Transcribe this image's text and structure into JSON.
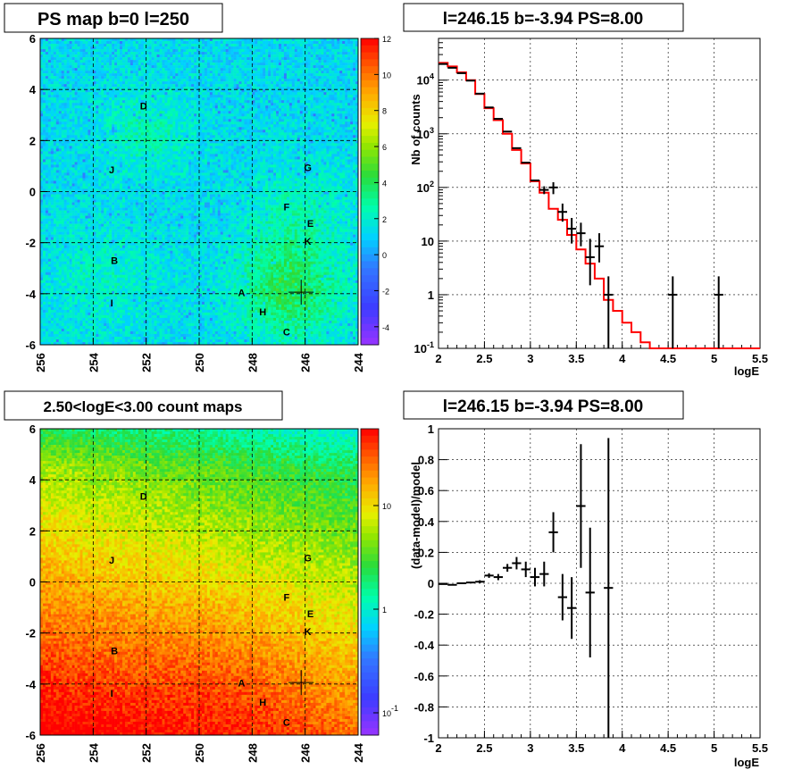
{
  "chart_data": [
    {
      "type": "heatmap",
      "title": "PS map b=0 l=250",
      "xlim": [
        256,
        244
      ],
      "ylim": [
        -6,
        6
      ],
      "x_ticks": [
        "256",
        "254",
        "252",
        "250",
        "248",
        "246",
        "244"
      ],
      "y_ticks": [
        "6",
        "4",
        "2",
        "0",
        "-2",
        "-4",
        "-6"
      ],
      "colorbar": {
        "min": -5,
        "max": 12,
        "ticks": [
          "12",
          "10",
          "8",
          "6",
          "4",
          "2",
          "0",
          "-2",
          "-4"
        ]
      },
      "sources": [
        {
          "label": "A",
          "l": 248.4,
          "b": -3.95
        },
        {
          "label": "B",
          "l": 253.2,
          "b": -2.7
        },
        {
          "label": "C",
          "l": 246.7,
          "b": -5.5
        },
        {
          "label": "D",
          "l": 252.1,
          "b": 3.35
        },
        {
          "label": "E",
          "l": 245.8,
          "b": -1.25
        },
        {
          "label": "F",
          "l": 246.7,
          "b": -0.6
        },
        {
          "label": "G",
          "l": 245.9,
          "b": 0.95
        },
        {
          "label": "H",
          "l": 247.6,
          "b": -4.7
        },
        {
          "label": "I",
          "l": 253.3,
          "b": -4.35
        },
        {
          "label": "J",
          "l": 253.3,
          "b": 0.85
        },
        {
          "label": "K",
          "l": 245.9,
          "b": -1.95
        }
      ],
      "marker": {
        "l": 246.15,
        "b": -3.94
      },
      "grid": true
    },
    {
      "type": "line",
      "title": "l=246.15 b=-3.94 PS=8.00",
      "xlabel": "logE",
      "ylabel": "Nb of counts",
      "xlim": [
        2,
        5.5
      ],
      "ylim": [
        0.1,
        60000
      ],
      "yscale": "log",
      "x_ticks": [
        "2",
        "2.5",
        "3",
        "3.5",
        "4",
        "4.5",
        "5",
        "5.5"
      ],
      "y_ticks": [
        "10^4",
        "10^3",
        "10^2",
        "10",
        "1",
        "10^-1"
      ],
      "model_step": {
        "name": "model",
        "color": "#ff0000",
        "bin_width": 0.1,
        "x": [
          2.05,
          2.15,
          2.25,
          2.35,
          2.45,
          2.55,
          2.65,
          2.75,
          2.85,
          2.95,
          3.05,
          3.15,
          3.25,
          3.35,
          3.45,
          3.55,
          3.65,
          3.75,
          3.85,
          3.95,
          4.05,
          4.15,
          4.25,
          4.35,
          4.45,
          4.55,
          4.65,
          4.75,
          4.85,
          4.95,
          5.05,
          5.15,
          5.25,
          5.35,
          5.45
        ],
        "y": [
          21000,
          18000,
          14000,
          10000,
          5500,
          3000,
          1800,
          1000,
          500,
          280,
          130,
          80,
          40,
          25,
          13,
          7,
          3.8,
          2,
          0.8,
          0.5,
          0.3,
          0.2,
          0.13,
          0.1,
          0.1,
          0.1,
          0.1,
          0.1,
          0.1,
          0.1,
          0.1,
          0.1,
          0.1,
          0.1,
          0.1
        ]
      },
      "data_points": {
        "name": "data",
        "color": "#000000",
        "x": [
          2.05,
          2.15,
          2.25,
          2.35,
          2.45,
          2.55,
          2.65,
          2.75,
          2.85,
          2.95,
          3.05,
          3.15,
          3.25,
          3.35,
          3.45,
          3.55,
          3.65,
          3.75,
          3.85,
          4.55,
          5.05
        ],
        "y": [
          20000,
          17000,
          13500,
          9800,
          5600,
          3100,
          1900,
          1100,
          540,
          290,
          135,
          90,
          100,
          35,
          17,
          14,
          5,
          8,
          1,
          1,
          1
        ],
        "err_low": [
          0,
          0,
          0,
          0,
          0,
          0,
          0,
          0,
          0,
          0,
          0,
          15,
          25,
          12,
          8,
          6,
          3.5,
          4,
          0.9,
          0.9,
          0.9
        ],
        "err_high": [
          0,
          0,
          0,
          0,
          0,
          0,
          0,
          0,
          0,
          0,
          0,
          15,
          25,
          15,
          10,
          8,
          6,
          6,
          1.2,
          1.2,
          1.2
        ]
      },
      "grid": true
    },
    {
      "type": "heatmap",
      "title": "2.50<logE<3.00 count maps",
      "xlim": [
        256,
        244
      ],
      "ylim": [
        -6,
        6
      ],
      "x_ticks": [
        "256",
        "254",
        "252",
        "250",
        "248",
        "246",
        "244"
      ],
      "y_ticks": [
        "6",
        "4",
        "2",
        "0",
        "-2",
        "-4",
        "-6"
      ],
      "colorbar": {
        "scale": "log",
        "ticks": [
          "10",
          "1",
          "10^-1"
        ]
      },
      "sources": [
        {
          "label": "A",
          "l": 248.4,
          "b": -3.95
        },
        {
          "label": "B",
          "l": 253.2,
          "b": -2.7
        },
        {
          "label": "C",
          "l": 246.7,
          "b": -5.5
        },
        {
          "label": "D",
          "l": 252.1,
          "b": 3.35
        },
        {
          "label": "E",
          "l": 245.8,
          "b": -1.25
        },
        {
          "label": "F",
          "l": 246.7,
          "b": -0.6
        },
        {
          "label": "G",
          "l": 245.9,
          "b": 0.95
        },
        {
          "label": "H",
          "l": 247.6,
          "b": -4.7
        },
        {
          "label": "I",
          "l": 253.3,
          "b": -4.35
        },
        {
          "label": "J",
          "l": 253.3,
          "b": 0.85
        },
        {
          "label": "K",
          "l": 245.9,
          "b": -1.95
        }
      ],
      "marker": {
        "l": 246.15,
        "b": -3.94
      },
      "grid": true
    },
    {
      "type": "scatter",
      "title": "l=246.15 b=-3.94 PS=8.00",
      "xlabel": "logE",
      "ylabel": "(data-model)/model",
      "xlim": [
        2,
        5.5
      ],
      "ylim": [
        -1,
        1
      ],
      "x_ticks": [
        "2",
        "2.5",
        "3",
        "3.5",
        "4",
        "4.5",
        "5",
        "5.5"
      ],
      "y_ticks": [
        "1",
        "0.8",
        "0.6",
        "0.4",
        "0.2",
        "0",
        "-0.2",
        "-0.4",
        "-0.6",
        "-0.8",
        "-1"
      ],
      "points": {
        "x": [
          2.05,
          2.15,
          2.25,
          2.35,
          2.45,
          2.55,
          2.65,
          2.75,
          2.85,
          2.95,
          3.05,
          3.15,
          3.25,
          3.35,
          3.45,
          3.55,
          3.65,
          3.85
        ],
        "y": [
          -0.005,
          -0.01,
          0.0,
          0.005,
          0.01,
          0.05,
          0.04,
          0.1,
          0.13,
          0.09,
          0.04,
          0.06,
          0.33,
          -0.09,
          -0.16,
          0.5,
          -0.06,
          -0.03
        ],
        "err": [
          0.005,
          0.005,
          0.006,
          0.007,
          0.01,
          0.015,
          0.02,
          0.025,
          0.04,
          0.05,
          0.06,
          0.08,
          0.13,
          0.15,
          0.2,
          0.4,
          0.42,
          1.0
        ]
      },
      "grid": true
    }
  ]
}
